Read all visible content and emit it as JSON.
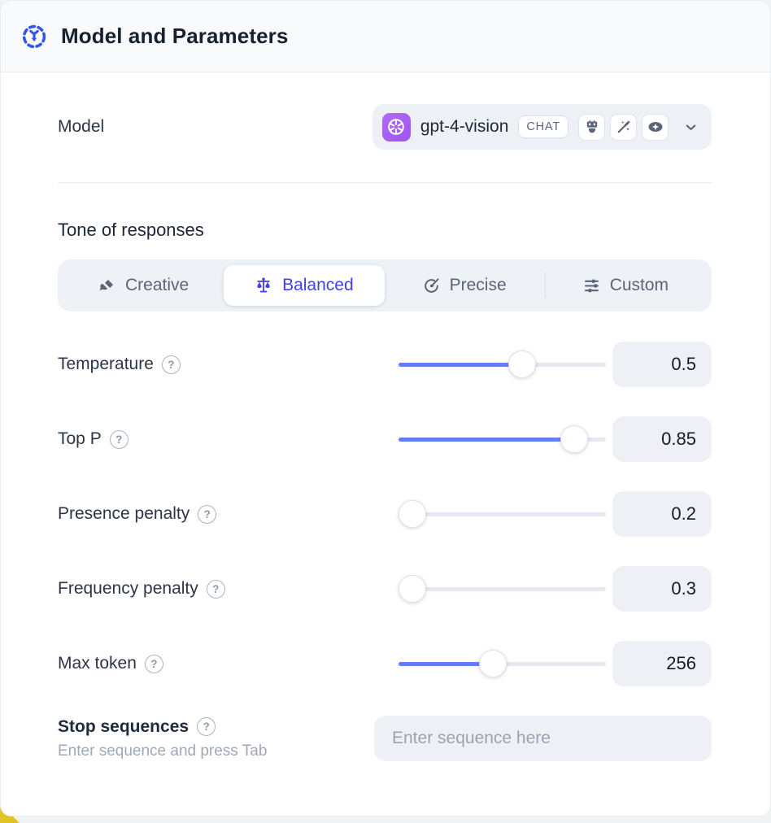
{
  "header": {
    "title": "Model and Parameters"
  },
  "model_row": {
    "label": "Model",
    "selector": {
      "provider": "openai",
      "name": "gpt-4-vision",
      "type_badge": "CHAT",
      "capability_icons": [
        "robot-icon",
        "magic-wand-icon",
        "vision-eye-icon"
      ]
    }
  },
  "tone": {
    "heading": "Tone of responses",
    "tabs": [
      {
        "label": "Creative",
        "icon": "paintbrush-icon",
        "selected": false
      },
      {
        "label": "Balanced",
        "icon": "scales-icon",
        "selected": true
      },
      {
        "label": "Precise",
        "icon": "target-arrow-icon",
        "selected": false
      },
      {
        "label": "Custom",
        "icon": "sliders-icon",
        "selected": false
      }
    ]
  },
  "parameters": [
    {
      "label": "Temperature",
      "value": "0.5",
      "fill_percent": 61
    },
    {
      "label": "Top P",
      "value": "0.85",
      "fill_percent": 90
    },
    {
      "label": "Presence penalty",
      "value": "0.2",
      "fill_percent": 0
    },
    {
      "label": "Frequency penalty",
      "value": "0.3",
      "fill_percent": 0
    },
    {
      "label": "Max token",
      "value": "256",
      "fill_percent": 45
    }
  ],
  "stop_sequences": {
    "label": "Stop sequences",
    "hint": "Enter sequence and press Tab",
    "placeholder": "Enter sequence here"
  },
  "icons": {
    "help_glyph": "?"
  },
  "colors": {
    "accent_blue": "#6080f5",
    "selected_tab_blue": "#4540e4",
    "provider_purple": "#a45ff0",
    "header_bg": "#f8fafc",
    "control_bg": "#eef0f5",
    "corner_accent_yellow": "#e2c326",
    "icon_slate": "#5b6577"
  }
}
